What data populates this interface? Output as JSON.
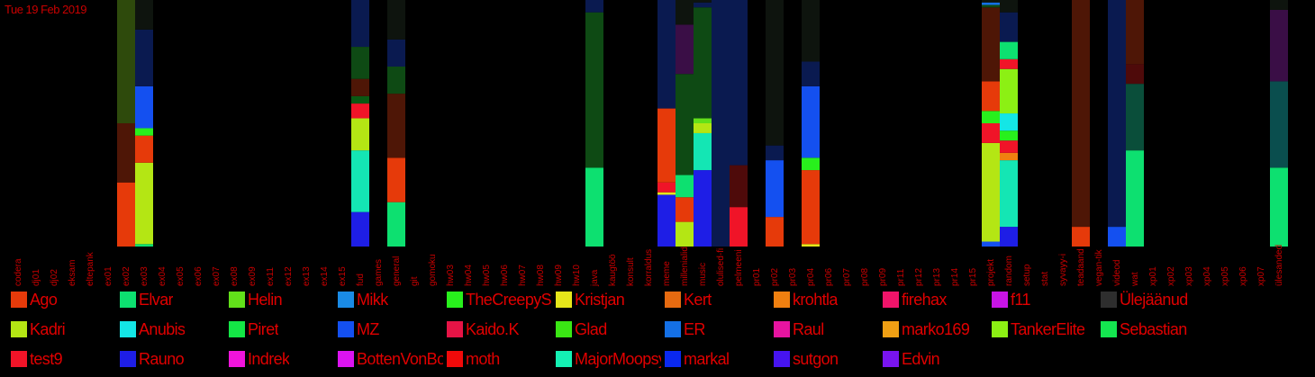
{
  "header": {
    "date": "Tue 19 Feb 2019"
  },
  "chart_data": {
    "type": "bar",
    "stacked": true,
    "normalized": true,
    "ylim": [
      0,
      1
    ],
    "grid": false,
    "categories": [
      "codera",
      "dj01",
      "dj02",
      "eksam",
      "eltepank",
      "ex01",
      "ex02",
      "ex03",
      "ex04",
      "ex05",
      "ex06",
      "ex07",
      "ex08",
      "ex09",
      "ex11",
      "ex12",
      "ex13",
      "ex14",
      "ex15",
      "fud",
      "games",
      "general",
      "git",
      "gomoku",
      "hw03",
      "hw04",
      "hw05",
      "hw06",
      "hw07",
      "hw08",
      "hw09",
      "hw10",
      "java",
      "kaugtöö",
      "konsult",
      "korraldus",
      "meme",
      "millenialid",
      "music",
      "olulised-fi",
      "pelmeeni",
      "pr01",
      "pr02",
      "pr03",
      "pr04",
      "pr06",
      "pr07",
      "pr08",
      "pr09",
      "pr11",
      "pr12",
      "pr13",
      "pr14",
      "pr15",
      "projekt",
      "random",
      "setup",
      "stat",
      "syvayy-i",
      "teadaand",
      "vegan-tik",
      "videod",
      "wat",
      "xp01",
      "xp02",
      "xp03",
      "xp04",
      "xp05",
      "xp06",
      "xp07",
      "ülesanded"
    ],
    "legend": [
      {
        "name": "Ago",
        "color": "#e63a0a"
      },
      {
        "name": "Elvar",
        "color": "#0de070"
      },
      {
        "name": "Helin",
        "color": "#62e01a"
      },
      {
        "name": "Mikk",
        "color": "#1a8be6"
      },
      {
        "name": "TheCreepySh",
        "color": "#28f01c"
      },
      {
        "name": "Kristjan",
        "color": "#e6e61a"
      },
      {
        "name": "Kert",
        "color": "#e66a10"
      },
      {
        "name": "krohtla",
        "color": "#f08010"
      },
      {
        "name": "firehax",
        "color": "#f0146a"
      },
      {
        "name": "f11",
        "color": "#c814e6"
      },
      {
        "name": "Ülejäänud",
        "color": "#2e2e2e"
      },
      {
        "name": "Kadri",
        "color": "#b4e614"
      },
      {
        "name": "Anubis",
        "color": "#14e6e6"
      },
      {
        "name": "Piret",
        "color": "#14e646"
      },
      {
        "name": "MZ",
        "color": "#1450f0"
      },
      {
        "name": "Kaido.K",
        "color": "#e61446"
      },
      {
        "name": "Glad",
        "color": "#3ae614"
      },
      {
        "name": "ER",
        "color": "#1470e6"
      },
      {
        "name": "Raul",
        "color": "#e614a0"
      },
      {
        "name": "marko169",
        "color": "#f0a014"
      },
      {
        "name": "TankerElite",
        "color": "#8cf014"
      },
      {
        "name": "Sebastian",
        "color": "#14e650"
      },
      {
        "name": "test9",
        "color": "#f01428"
      },
      {
        "name": "Rauno",
        "color": "#1e1ee6"
      },
      {
        "name": "Indrek",
        "color": "#f014dc"
      },
      {
        "name": "BottenVonBot",
        "color": "#dc14f0"
      },
      {
        "name": "moth",
        "color": "#f00a0a"
      },
      {
        "name": "MajorMoopsy",
        "color": "#14f0b4"
      },
      {
        "name": "markal",
        "color": "#0a28f0"
      },
      {
        "name": "sutgon",
        "color": "#4614f0"
      },
      {
        "name": "Edvin",
        "color": "#7814f0"
      }
    ],
    "bars": [
      {
        "category": "ex02",
        "segments": [
          {
            "color": "#e63a0a",
            "value": 0.26
          },
          {
            "color": "#4e1606",
            "value": 0.24
          },
          {
            "color": "#2e4a0c",
            "value": 0.5
          }
        ]
      },
      {
        "category": "ex03",
        "segments": [
          {
            "color": "#0de070",
            "value": 0.01
          },
          {
            "color": "#b4e614",
            "value": 0.33
          },
          {
            "color": "#e63a0a",
            "value": 0.11
          },
          {
            "color": "#28f01c",
            "value": 0.03
          },
          {
            "color": "#1450f0",
            "value": 0.17
          },
          {
            "color": "#0a1a50",
            "value": 0.23
          },
          {
            "color": "#0e140e",
            "value": 0.12
          }
        ]
      },
      {
        "category": "fud",
        "segments": [
          {
            "color": "#1e1ee6",
            "value": 0.14
          },
          {
            "color": "#14e6b4",
            "value": 0.25
          },
          {
            "color": "#b4e614",
            "value": 0.13
          },
          {
            "color": "#f01428",
            "value": 0.06
          },
          {
            "color": "#0a5a14",
            "value": 0.03
          },
          {
            "color": "#4e1606",
            "value": 0.07
          },
          {
            "color": "#0e4a14",
            "value": 0.13
          },
          {
            "color": "#0a1a50",
            "value": 0.19
          }
        ]
      },
      {
        "category": "general",
        "segments": [
          {
            "color": "#0de070",
            "value": 0.18
          },
          {
            "color": "#e63a0a",
            "value": 0.18
          },
          {
            "color": "#4e1606",
            "value": 0.26
          },
          {
            "color": "#0e4a14",
            "value": 0.11
          },
          {
            "color": "#0a1a50",
            "value": 0.11
          },
          {
            "color": "#0e140e",
            "value": 0.16
          }
        ]
      },
      {
        "category": "java",
        "segments": [
          {
            "color": "#0de070",
            "value": 0.32
          },
          {
            "color": "#0e4a14",
            "value": 0.63
          },
          {
            "color": "#0a1a50",
            "value": 0.05
          }
        ]
      },
      {
        "category": "meme",
        "segments": [
          {
            "color": "#1e1ee6",
            "value": 0.21
          },
          {
            "color": "#e6e61a",
            "value": 0.01
          },
          {
            "color": "#f01428",
            "value": 0.04
          },
          {
            "color": "#e63a0a",
            "value": 0.3
          },
          {
            "color": "#0a1a50",
            "value": 0.44
          }
        ]
      },
      {
        "category": "millenialid",
        "segments": [
          {
            "color": "#b4e614",
            "value": 0.1
          },
          {
            "color": "#e63a0a",
            "value": 0.1
          },
          {
            "color": "#0de070",
            "value": 0.09
          },
          {
            "color": "#0e4a14",
            "value": 0.41
          },
          {
            "color": "#3a0e46",
            "value": 0.2
          },
          {
            "color": "#0e140e",
            "value": 0.1
          }
        ]
      },
      {
        "category": "music",
        "segments": [
          {
            "color": "#1e1ee6",
            "value": 0.31
          },
          {
            "color": "#14e6b4",
            "value": 0.15
          },
          {
            "color": "#b4e614",
            "value": 0.04
          },
          {
            "color": "#62e01a",
            "value": 0.02
          },
          {
            "color": "#0e4a14",
            "value": 0.45
          },
          {
            "color": "#0a1a50",
            "value": 0.02
          },
          {
            "color": "#0e140e",
            "value": 0.01
          }
        ]
      },
      {
        "category": "olulised-fi",
        "segments": [
          {
            "color": "#0a1a50",
            "value": 1.0
          }
        ]
      },
      {
        "category": "pelmeeni",
        "segments": [
          {
            "color": "#f01428",
            "value": 0.16
          },
          {
            "color": "#4e0a0a",
            "value": 0.17
          },
          {
            "color": "#0a1a50",
            "value": 0.67
          }
        ]
      },
      {
        "category": "pr02",
        "segments": [
          {
            "color": "#e63a0a",
            "value": 0.12
          },
          {
            "color": "#1450f0",
            "value": 0.23
          },
          {
            "color": "#0a1a50",
            "value": 0.06
          },
          {
            "color": "#0e140e",
            "value": 0.59
          }
        ]
      },
      {
        "category": "pr04",
        "segments": [
          {
            "color": "#e6e61a",
            "value": 0.01
          },
          {
            "color": "#e63a0a",
            "value": 0.3
          },
          {
            "color": "#28f01c",
            "value": 0.05
          },
          {
            "color": "#1450f0",
            "value": 0.29
          },
          {
            "color": "#0a1a50",
            "value": 0.1
          },
          {
            "color": "#0e140e",
            "value": 0.25
          }
        ]
      },
      {
        "category": "projekt",
        "segments": [
          {
            "color": "#1450f0",
            "value": 0.02
          },
          {
            "color": "#b4e614",
            "value": 0.4
          },
          {
            "color": "#f01428",
            "value": 0.08
          },
          {
            "color": "#28f01c",
            "value": 0.05
          },
          {
            "color": "#e63a0a",
            "value": 0.12
          },
          {
            "color": "#4e1606",
            "value": 0.3
          },
          {
            "color": "#0e4a14",
            "value": 0.01
          },
          {
            "color": "#1470e6",
            "value": 0.01
          },
          {
            "color": "#0e140e",
            "value": 0.01
          }
        ]
      },
      {
        "category": "random",
        "segments": [
          {
            "color": "#1e1ee6",
            "value": 0.08
          },
          {
            "color": "#14e6b4",
            "value": 0.27
          },
          {
            "color": "#f08010",
            "value": 0.03
          },
          {
            "color": "#f01428",
            "value": 0.05
          },
          {
            "color": "#28f01c",
            "value": 0.04
          },
          {
            "color": "#14e6e6",
            "value": 0.07
          },
          {
            "color": "#8cf014",
            "value": 0.18
          },
          {
            "color": "#f01428",
            "value": 0.04
          },
          {
            "color": "#0de070",
            "value": 0.07
          },
          {
            "color": "#0a1a50",
            "value": 0.12
          },
          {
            "color": "#0e140e",
            "value": 0.05
          }
        ]
      },
      {
        "category": "teadaand",
        "segments": [
          {
            "color": "#e63a0a",
            "value": 0.08
          },
          {
            "color": "#4e1606",
            "value": 0.92
          }
        ]
      },
      {
        "category": "videod",
        "segments": [
          {
            "color": "#1450f0",
            "value": 0.08
          },
          {
            "color": "#0a1a50",
            "value": 0.92
          }
        ]
      },
      {
        "category": "wat",
        "segments": [
          {
            "color": "#0de070",
            "value": 0.39
          },
          {
            "color": "#0a4e3a",
            "value": 0.27
          },
          {
            "color": "#4e0a0a",
            "value": 0.08
          },
          {
            "color": "#4e1606",
            "value": 0.26
          }
        ]
      },
      {
        "category": "ülesanded",
        "segments": [
          {
            "color": "#0de070",
            "value": 0.32
          },
          {
            "color": "#0a4e4e",
            "value": 0.35
          },
          {
            "color": "#3a0e46",
            "value": 0.29
          },
          {
            "color": "#0e140e",
            "value": 0.04
          }
        ]
      }
    ]
  }
}
